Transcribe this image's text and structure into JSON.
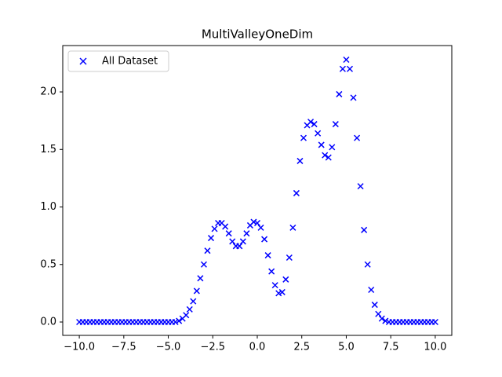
{
  "chart_data": {
    "type": "scatter",
    "title": "MultiValleyOneDim",
    "series": [
      {
        "name": "All Dataset",
        "color": "#0000ff",
        "marker": "x",
        "x": [
          -10,
          -9.8,
          -9.6,
          -9.4,
          -9.2,
          -9,
          -8.8,
          -8.6,
          -8.4,
          -8.2,
          -8,
          -7.8,
          -7.6,
          -7.4,
          -7.2,
          -7,
          -6.8,
          -6.6,
          -6.4,
          -6.2,
          -6,
          -5.8,
          -5.6,
          -5.4,
          -5.2,
          -5,
          -4.8,
          -4.6,
          -4.4,
          -4.2,
          -4,
          -3.8,
          -3.6,
          -3.4,
          -3.2,
          -3,
          -2.8,
          -2.6,
          -2.4,
          -2.2,
          -2,
          -1.8,
          -1.6,
          -1.4,
          -1.2,
          -1,
          -0.8,
          -0.6,
          -0.4,
          -0.2,
          0,
          0.2,
          0.4,
          0.6,
          0.8,
          1,
          1.2,
          1.4,
          1.6,
          1.8,
          2,
          2.2,
          2.4,
          2.6,
          2.8,
          3,
          3.2,
          3.4,
          3.6,
          3.8,
          4,
          4.2,
          4.4,
          4.6,
          4.8,
          5,
          5.2,
          5.4,
          5.6,
          5.8,
          6,
          6.2,
          6.4,
          6.6,
          6.8,
          7,
          7.2,
          7.4,
          7.6,
          7.8,
          8,
          8.2,
          8.4,
          8.6,
          8.8,
          9,
          9.2,
          9.4,
          9.6,
          9.8,
          10
        ],
        "values": [
          0,
          0,
          0,
          0,
          0,
          0,
          0,
          0,
          0,
          0,
          0,
          0,
          0,
          0,
          0,
          0,
          0,
          0,
          0,
          0,
          0,
          0,
          0,
          0,
          0,
          0,
          0,
          0,
          0.01,
          0.03,
          0.06,
          0.11,
          0.18,
          0.27,
          0.38,
          0.5,
          0.62,
          0.73,
          0.81,
          0.86,
          0.86,
          0.83,
          0.77,
          0.7,
          0.66,
          0.66,
          0.7,
          0.77,
          0.84,
          0.87,
          0.86,
          0.82,
          0.72,
          0.58,
          0.44,
          0.32,
          0.25,
          0.26,
          0.37,
          0.56,
          0.82,
          1.12,
          1.4,
          1.6,
          1.71,
          1.74,
          1.72,
          1.64,
          1.54,
          1.45,
          1.43,
          1.52,
          1.72,
          1.98,
          2.2,
          2.28,
          2.2,
          1.95,
          1.6,
          1.18,
          0.8,
          0.5,
          0.28,
          0.15,
          0.07,
          0.03,
          0.01,
          0,
          0,
          0,
          0,
          0,
          0,
          0,
          0,
          0,
          0,
          0,
          0,
          0,
          0
        ]
      }
    ],
    "xlim": [
      -10.93,
      10.93
    ],
    "xticks": [
      {
        "value": -10,
        "label": "−10.0"
      },
      {
        "value": -7.5,
        "label": "−7.5"
      },
      {
        "value": -5,
        "label": "−5.0"
      },
      {
        "value": -2.5,
        "label": "−2.5"
      },
      {
        "value": 0,
        "label": "0.0"
      },
      {
        "value": 2.5,
        "label": "2.5"
      },
      {
        "value": 5,
        "label": "5.0"
      },
      {
        "value": 7.5,
        "label": "7.5"
      },
      {
        "value": 10,
        "label": "10.0"
      }
    ],
    "ylim": [
      -0.116,
      2.403
    ],
    "yticks": [
      {
        "value": 0,
        "label": "0.0"
      },
      {
        "value": 0.5,
        "label": "0.5"
      },
      {
        "value": 1,
        "label": "1.0"
      },
      {
        "value": 1.5,
        "label": "1.5"
      },
      {
        "value": 2,
        "label": "2.0"
      }
    ],
    "grid": false,
    "legend": "upper left"
  }
}
